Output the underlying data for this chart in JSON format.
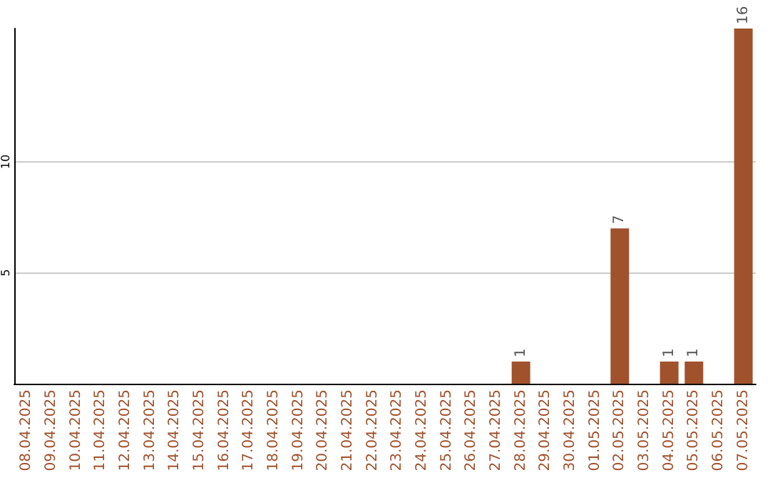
{
  "chart_data": {
    "type": "bar",
    "categories": [
      "08.04.2025",
      "09.04.2025",
      "10.04.2025",
      "11.04.2025",
      "12.04.2025",
      "13.04.2025",
      "14.04.2025",
      "15.04.2025",
      "16.04.2025",
      "17.04.2025",
      "18.04.2025",
      "19.04.2025",
      "20.04.2025",
      "21.04.2025",
      "22.04.2025",
      "23.04.2025",
      "24.04.2025",
      "25.04.2025",
      "26.04.2025",
      "27.04.2025",
      "28.04.2025",
      "29.04.2025",
      "30.04.2025",
      "01.05.2025",
      "02.05.2025",
      "03.05.2025",
      "04.05.2025",
      "05.05.2025",
      "06.05.2025",
      "07.05.2025"
    ],
    "values": [
      0,
      0,
      0,
      0,
      0,
      0,
      0,
      0,
      0,
      0,
      0,
      0,
      0,
      0,
      0,
      0,
      0,
      0,
      0,
      0,
      1,
      0,
      0,
      0,
      7,
      0,
      1,
      1,
      0,
      16
    ],
    "value_labels": [
      null,
      null,
      null,
      null,
      null,
      null,
      null,
      null,
      null,
      null,
      null,
      null,
      null,
      null,
      null,
      null,
      null,
      null,
      null,
      null,
      "1",
      null,
      null,
      null,
      "7",
      null,
      "1",
      "1",
      null,
      "16"
    ],
    "color": "#a0522d",
    "ylim": [
      0,
      16
    ],
    "yticks": [
      5,
      10
    ],
    "grid": "y"
  }
}
